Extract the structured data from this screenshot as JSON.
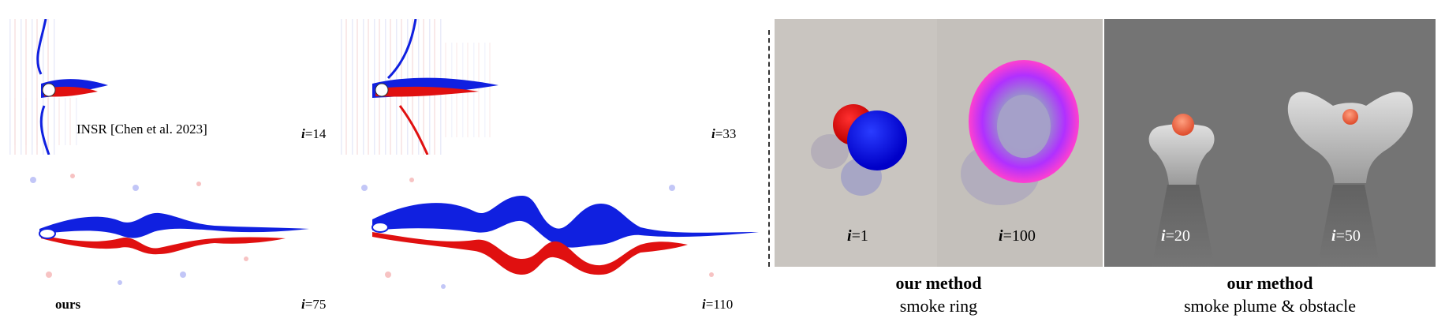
{
  "left_figure": {
    "panels": [
      {
        "method_label": "INSR [Chen et al. 2023]",
        "iter_var": "i",
        "iter_value": "=14"
      },
      {
        "method_label": "",
        "iter_var": "i",
        "iter_value": "=33"
      },
      {
        "method_label": "ours",
        "iter_var": "i",
        "iter_value": "=75"
      },
      {
        "method_label": "",
        "iter_var": "i",
        "iter_value": "=110"
      }
    ]
  },
  "right_figure": {
    "groups": [
      {
        "title": "our method",
        "subtitle": "smoke ring",
        "frames": [
          {
            "iter_var": "i",
            "iter_value": "=1"
          },
          {
            "iter_var": "i",
            "iter_value": "=100"
          }
        ]
      },
      {
        "title": "our method",
        "subtitle": "smoke plume & obstacle",
        "frames": [
          {
            "iter_var": "i",
            "iter_value": "=20"
          },
          {
            "iter_var": "i",
            "iter_value": "=50"
          }
        ]
      }
    ]
  },
  "colors": {
    "vorticity_positive": "#e01010",
    "vorticity_negative": "#1020e0",
    "smoke_ring_bg": "#c6c2bd",
    "plume_bg": "#757575"
  }
}
